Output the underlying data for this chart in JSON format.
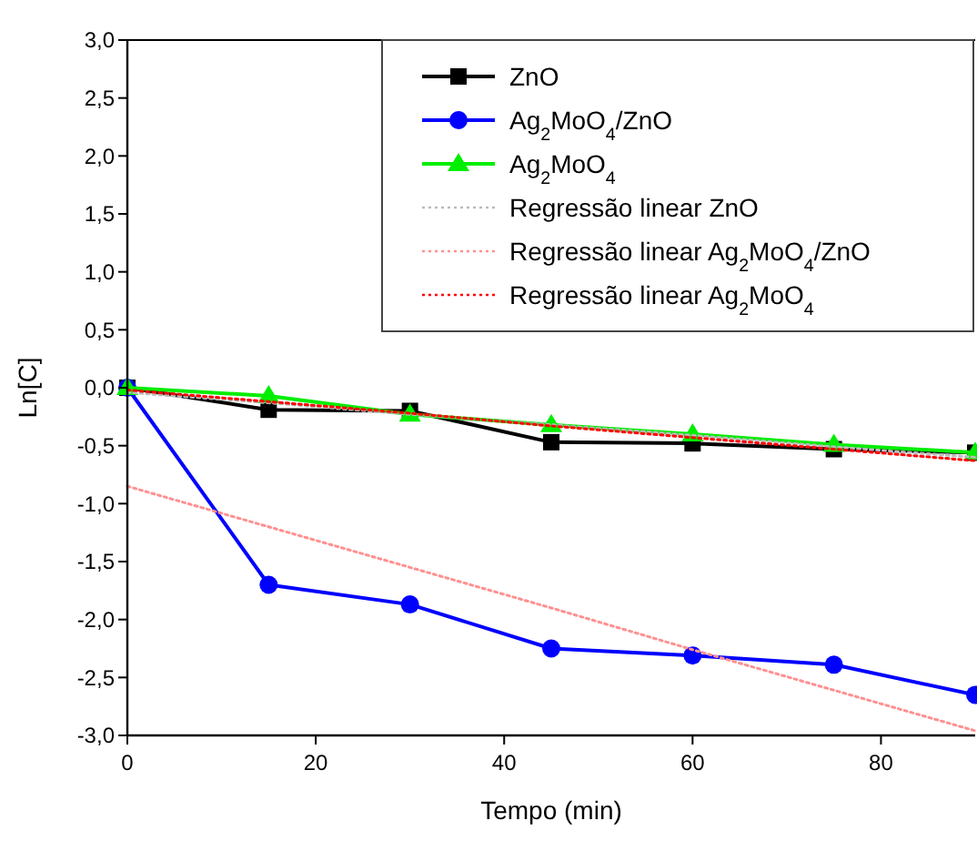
{
  "chart_data": {
    "type": "line",
    "xlabel": "Tempo (min)",
    "ylabel": "Ln[C]",
    "xlim": [
      0,
      90
    ],
    "ylim": [
      -3,
      3
    ],
    "xticks": [
      0,
      20,
      40,
      60,
      80
    ],
    "yticks": [
      {
        "value": 3,
        "label": "3,0"
      },
      {
        "value": 2.5,
        "label": "2,5"
      },
      {
        "value": 2,
        "label": "2,0"
      },
      {
        "value": 1.5,
        "label": "1,5"
      },
      {
        "value": 1,
        "label": "1,0"
      },
      {
        "value": 0.5,
        "label": "0,5"
      },
      {
        "value": 0,
        "label": "0,0"
      },
      {
        "value": -0.5,
        "label": "-0,5"
      },
      {
        "value": -1,
        "label": "-1,0"
      },
      {
        "value": -1.5,
        "label": "-1,5"
      },
      {
        "value": -2,
        "label": "-2,0"
      },
      {
        "value": -2.5,
        "label": "-2,5"
      },
      {
        "value": -3,
        "label": "-3,0"
      }
    ],
    "grid": false,
    "legend": "top right",
    "x": [
      0,
      15,
      30,
      45,
      60,
      75,
      90
    ],
    "series": [
      {
        "name": "ZnO",
        "color": "#000000",
        "marker": "square",
        "line_style": "solid",
        "values": [
          0,
          -0.19,
          -0.2,
          -0.47,
          -0.48,
          -0.53,
          -0.56
        ]
      },
      {
        "name": "Ag$_{2}$MoO$_{4}$/ZnO",
        "color": "#0000ff",
        "marker": "circle",
        "line_style": "solid",
        "values": [
          0,
          -1.7,
          -1.87,
          -2.25,
          -2.31,
          -2.39,
          -2.65
        ]
      },
      {
        "name": "Ag$_{2}$MoO$_{4}$",
        "color": "#00ee00",
        "marker": "triangle",
        "line_style": "solid",
        "values": [
          0,
          -0.07,
          -0.23,
          -0.32,
          -0.4,
          -0.49,
          -0.56
        ]
      },
      {
        "name": "Regressão linear ZnO",
        "color": "#bbbbbb",
        "marker": "none",
        "line_style": "dotted",
        "values": [
          -0.04,
          -0.13,
          -0.23,
          -0.32,
          -0.41,
          -0.51,
          -0.6
        ]
      },
      {
        "name": "Regressão linear Ag$_{2}$MoO$_{4}$/ZnO",
        "color": "#ff9090",
        "marker": "none",
        "line_style": "dotted",
        "values": [
          -0.85,
          -1.2,
          -1.55,
          -1.9,
          -2.26,
          -2.61,
          -2.96
        ]
      },
      {
        "name": "Regressão linear Ag$_{2}$MoO$_{4}$",
        "color": "#ff0000",
        "marker": "none",
        "line_style": "dotted",
        "values": [
          -0.02,
          -0.12,
          -0.22,
          -0.33,
          -0.43,
          -0.53,
          -0.63
        ]
      }
    ]
  }
}
